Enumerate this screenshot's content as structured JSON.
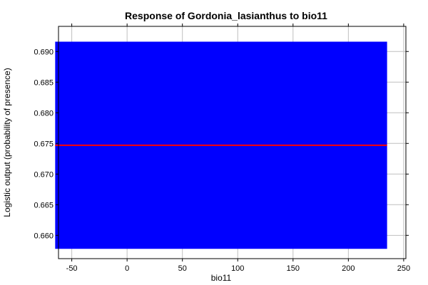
{
  "chart_data": {
    "type": "line",
    "title": "Response of Gordonia_lasianthus to bio11",
    "xlabel": "bio11",
    "ylabel": "Logistic output (probability of presence)",
    "xlim": [
      -62,
      252
    ],
    "ylim": [
      0.6562,
      0.6941
    ],
    "x_ticks": [
      -50,
      0,
      50,
      100,
      150,
      200,
      250
    ],
    "y_ticks": [
      0.66,
      0.665,
      0.67,
      0.675,
      0.68,
      0.685,
      0.69
    ],
    "x_tick_labels": [
      "-50",
      "0",
      "50",
      "100",
      "150",
      "200",
      "250"
    ],
    "y_tick_labels": [
      "0.660",
      "0.665",
      "0.670",
      "0.675",
      "0.680",
      "0.685",
      "0.690"
    ],
    "grid": true,
    "series": [
      {
        "x": [
          -65,
          235
        ],
        "y": [
          0.6747,
          0.6747
        ],
        "color": "#ff0000"
      }
    ],
    "band": {
      "x": [
        -65,
        235
      ],
      "lower": 0.6578,
      "upper": 0.6916,
      "color": "#0000ff"
    }
  }
}
